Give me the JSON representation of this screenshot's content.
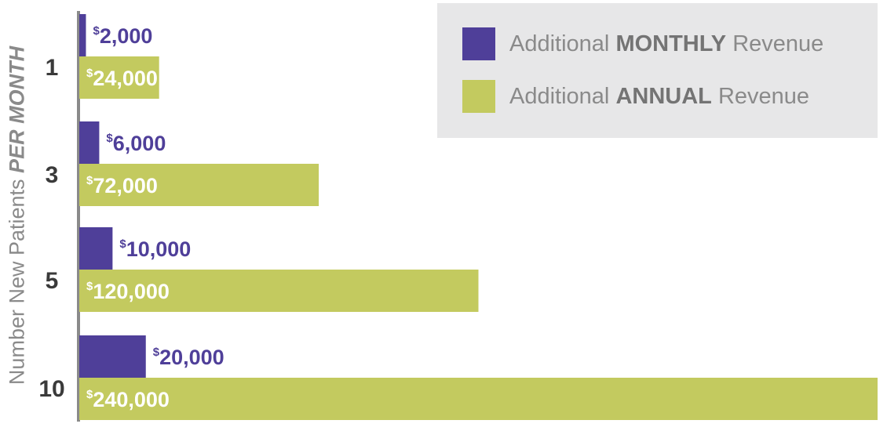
{
  "chart_data": {
    "type": "bar",
    "orientation": "horizontal",
    "ylabel_prefix": "Number New Patients",
    "ylabel_emph": "PER MONTH",
    "categories": [
      "1",
      "3",
      "5",
      "10"
    ],
    "series": [
      {
        "name": "Additional MONTHLY Revenue",
        "name_prefix": "Additional",
        "name_emph": "MONTHLY",
        "name_suffix": "Revenue",
        "color": "#4f3f99",
        "label_color": "#4f3f99",
        "values": [
          2000,
          6000,
          10000,
          20000
        ],
        "labels": [
          "2,000",
          "6,000",
          "10,000",
          "20,000"
        ]
      },
      {
        "name": "Additional ANNUAL Revenue",
        "name_prefix": "Additional",
        "name_emph": "ANNUAL",
        "name_suffix": "Revenue",
        "color": "#c3ca5f",
        "label_color": "#ffffff",
        "values": [
          24000,
          72000,
          120000,
          240000
        ],
        "labels": [
          "24,000",
          "72,000",
          "120,000",
          "240,000"
        ]
      }
    ],
    "currency_symbol": "$",
    "xlim": [
      0,
      240000
    ],
    "legend_position": "top-right",
    "grid": false,
    "axis_color": "#8a8a8a",
    "category_label_color": "#3a3a3a"
  }
}
